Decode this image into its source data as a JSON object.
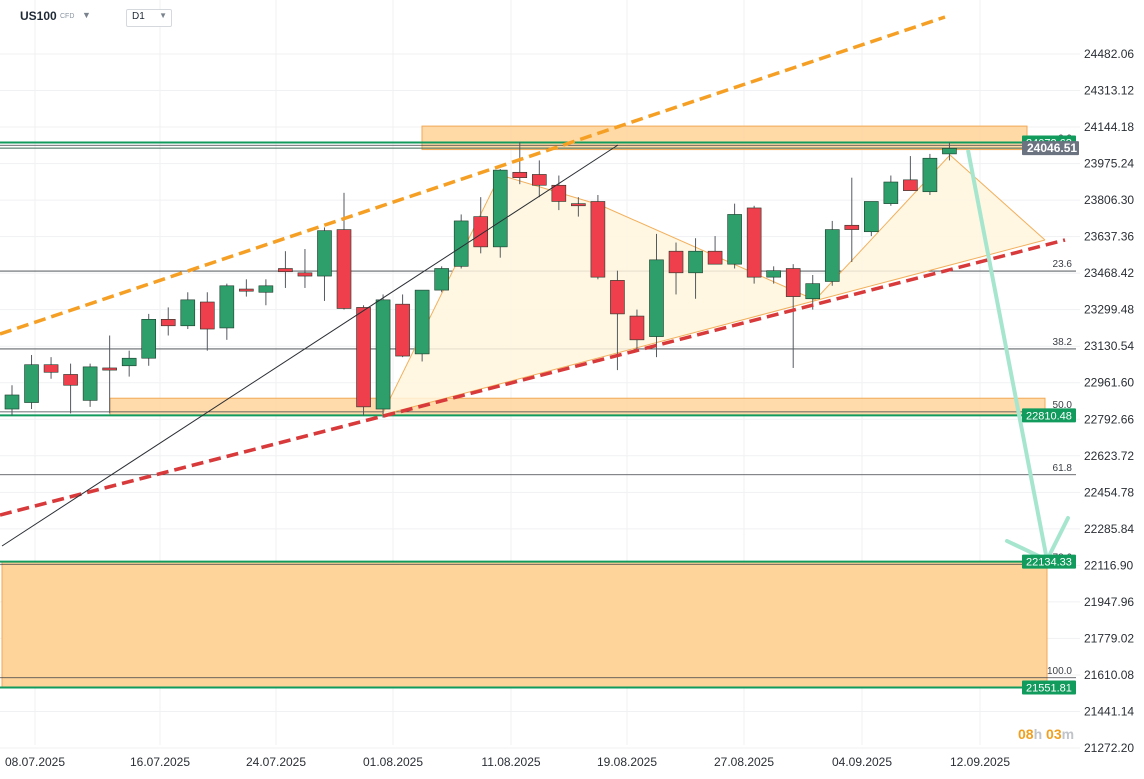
{
  "header": {
    "symbol": "US100",
    "symbol_type": "CFD",
    "timeframe": "D1"
  },
  "countdown": {
    "hours": "08",
    "h_unit": "h",
    "minutes": "03",
    "m_unit": "m"
  },
  "colors": {
    "up": "#2e9e6b",
    "down": "#ef3f4c",
    "zone_fill": "#ffd296",
    "zone_stroke": "#f1a957",
    "orange_dashed": "#f5a025",
    "red_dashed": "#d8393a",
    "arrow": "#a6e6cf",
    "green_level": "#119b5d",
    "pattern_fill": "#fff6dd",
    "pattern_stroke": "#f2b05e"
  },
  "chart_data": {
    "type": "candlestick",
    "y_axis": {
      "ticks": [
        "24482.06",
        "24313.12",
        "24144.18",
        "23975.24",
        "23806.30",
        "23637.36",
        "23468.42",
        "23299.48",
        "23130.54",
        "22961.60",
        "22792.66",
        "22623.72",
        "22454.78",
        "22285.84",
        "22116.90",
        "21947.96",
        "21779.02",
        "21610.08",
        "21441.14",
        "21272.20"
      ],
      "range": [
        21272.2,
        24650
      ]
    },
    "x_axis": {
      "labels": [
        "08.07.2025",
        "16.07.2025",
        "24.07.2025",
        "01.08.2025",
        "11.08.2025",
        "19.08.2025",
        "27.08.2025",
        "04.09.2025",
        "12.09.2025"
      ]
    },
    "price_labels": [
      {
        "text": "24072.62",
        "value": 24072.62,
        "style": "green"
      },
      {
        "text": "24046.51",
        "value": 24046.51,
        "style": "current"
      },
      {
        "text": "22810.48",
        "value": 22810.48,
        "style": "green"
      },
      {
        "text": "22134.33",
        "value": 22134.33,
        "style": "green"
      },
      {
        "text": "21551.81",
        "value": 21551.81,
        "style": "green"
      }
    ],
    "fib_levels": [
      {
        "label": "0.0",
        "value": 24060
      },
      {
        "label": "23.6",
        "value": 23478
      },
      {
        "label": "38.2",
        "value": 23118
      },
      {
        "label": "50.0",
        "value": 22827
      },
      {
        "label": "61.8",
        "value": 22536
      },
      {
        "label": "78.6",
        "value": 22122
      },
      {
        "label": "100.0",
        "value": 21597
      }
    ],
    "candles": [
      {
        "o": 22840,
        "h": 22950,
        "l": 22810,
        "c": 22905
      },
      {
        "o": 22870,
        "h": 23090,
        "l": 22840,
        "c": 23045
      },
      {
        "o": 23045,
        "h": 23080,
        "l": 22980,
        "c": 23010
      },
      {
        "o": 23000,
        "h": 23050,
        "l": 22820,
        "c": 22950
      },
      {
        "o": 22880,
        "h": 23050,
        "l": 22850,
        "c": 23035
      },
      {
        "o": 23030,
        "h": 23180,
        "l": 22820,
        "c": 23020
      },
      {
        "o": 23040,
        "h": 23110,
        "l": 22990,
        "c": 23075
      },
      {
        "o": 23075,
        "h": 23280,
        "l": 23040,
        "c": 23255
      },
      {
        "o": 23255,
        "h": 23310,
        "l": 23180,
        "c": 23225
      },
      {
        "o": 23225,
        "h": 23380,
        "l": 23210,
        "c": 23345
      },
      {
        "o": 23335,
        "h": 23380,
        "l": 23110,
        "c": 23210
      },
      {
        "o": 23215,
        "h": 23420,
        "l": 23160,
        "c": 23410
      },
      {
        "o": 23395,
        "h": 23440,
        "l": 23360,
        "c": 23385
      },
      {
        "o": 23380,
        "h": 23440,
        "l": 23320,
        "c": 23410
      },
      {
        "o": 23490,
        "h": 23570,
        "l": 23400,
        "c": 23475
      },
      {
        "o": 23470,
        "h": 23580,
        "l": 23400,
        "c": 23455
      },
      {
        "o": 23455,
        "h": 23680,
        "l": 23340,
        "c": 23665
      },
      {
        "o": 23670,
        "h": 23840,
        "l": 23300,
        "c": 23305
      },
      {
        "o": 23310,
        "h": 23320,
        "l": 22810,
        "c": 22850
      },
      {
        "o": 22840,
        "h": 23370,
        "l": 22800,
        "c": 23345
      },
      {
        "o": 23325,
        "h": 23370,
        "l": 23080,
        "c": 23085
      },
      {
        "o": 23095,
        "h": 23390,
        "l": 23060,
        "c": 23390
      },
      {
        "o": 23390,
        "h": 23500,
        "l": 23380,
        "c": 23490
      },
      {
        "o": 23500,
        "h": 23740,
        "l": 23490,
        "c": 23710
      },
      {
        "o": 23730,
        "h": 23820,
        "l": 23560,
        "c": 23590
      },
      {
        "o": 23590,
        "h": 23950,
        "l": 23540,
        "c": 23945
      },
      {
        "o": 23935,
        "h": 24075,
        "l": 23880,
        "c": 23910
      },
      {
        "o": 23925,
        "h": 23990,
        "l": 23820,
        "c": 23875
      },
      {
        "o": 23875,
        "h": 23920,
        "l": 23760,
        "c": 23800
      },
      {
        "o": 23790,
        "h": 23820,
        "l": 23730,
        "c": 23780
      },
      {
        "o": 23800,
        "h": 23830,
        "l": 23440,
        "c": 23450
      },
      {
        "o": 23435,
        "h": 23480,
        "l": 23020,
        "c": 23280
      },
      {
        "o": 23270,
        "h": 23300,
        "l": 23110,
        "c": 23160
      },
      {
        "o": 23175,
        "h": 23650,
        "l": 23080,
        "c": 23530
      },
      {
        "o": 23570,
        "h": 23610,
        "l": 23370,
        "c": 23470
      },
      {
        "o": 23470,
        "h": 23630,
        "l": 23350,
        "c": 23570
      },
      {
        "o": 23570,
        "h": 23640,
        "l": 23520,
        "c": 23510
      },
      {
        "o": 23510,
        "h": 23790,
        "l": 23490,
        "c": 23740
      },
      {
        "o": 23770,
        "h": 23780,
        "l": 23420,
        "c": 23450
      },
      {
        "o": 23450,
        "h": 23500,
        "l": 23420,
        "c": 23480
      },
      {
        "o": 23490,
        "h": 23510,
        "l": 23030,
        "c": 23360
      },
      {
        "o": 23350,
        "h": 23460,
        "l": 23300,
        "c": 23420
      },
      {
        "o": 23430,
        "h": 23710,
        "l": 23410,
        "c": 23670
      },
      {
        "o": 23690,
        "h": 23910,
        "l": 23520,
        "c": 23670
      },
      {
        "o": 23660,
        "h": 23800,
        "l": 23640,
        "c": 23800
      },
      {
        "o": 23790,
        "h": 23920,
        "l": 23780,
        "c": 23890
      },
      {
        "o": 23900,
        "h": 24010,
        "l": 23860,
        "c": 23850
      },
      {
        "o": 23845,
        "h": 24020,
        "l": 23830,
        "c": 24000
      },
      {
        "o": 24020,
        "h": 24072,
        "l": 23990,
        "c": 24046
      }
    ]
  }
}
